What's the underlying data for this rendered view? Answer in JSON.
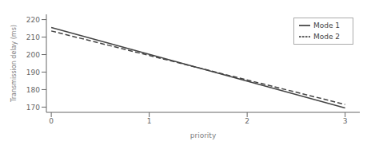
{
  "chart_data": {
    "type": "line",
    "x": [
      0,
      3
    ],
    "series": [
      {
        "name": "Mode 1",
        "color": "#444444",
        "values": [
          215.5,
          169.5
        ],
        "line_style": "solid"
      },
      {
        "name": "Mode 2",
        "color": "#444444",
        "values": [
          213.5,
          171.5
        ],
        "line_style": "dashed"
      }
    ],
    "xlabel": "priority",
    "ylabel": "Transmission delay (ms)",
    "xlim": [
      -0.05,
      3.15
    ],
    "ylim": [
      167,
      223
    ],
    "xticks": [
      0,
      1,
      2,
      3
    ],
    "yticks": [
      170,
      180,
      190,
      200,
      210,
      220
    ],
    "legend": "upper right",
    "grid": false
  }
}
